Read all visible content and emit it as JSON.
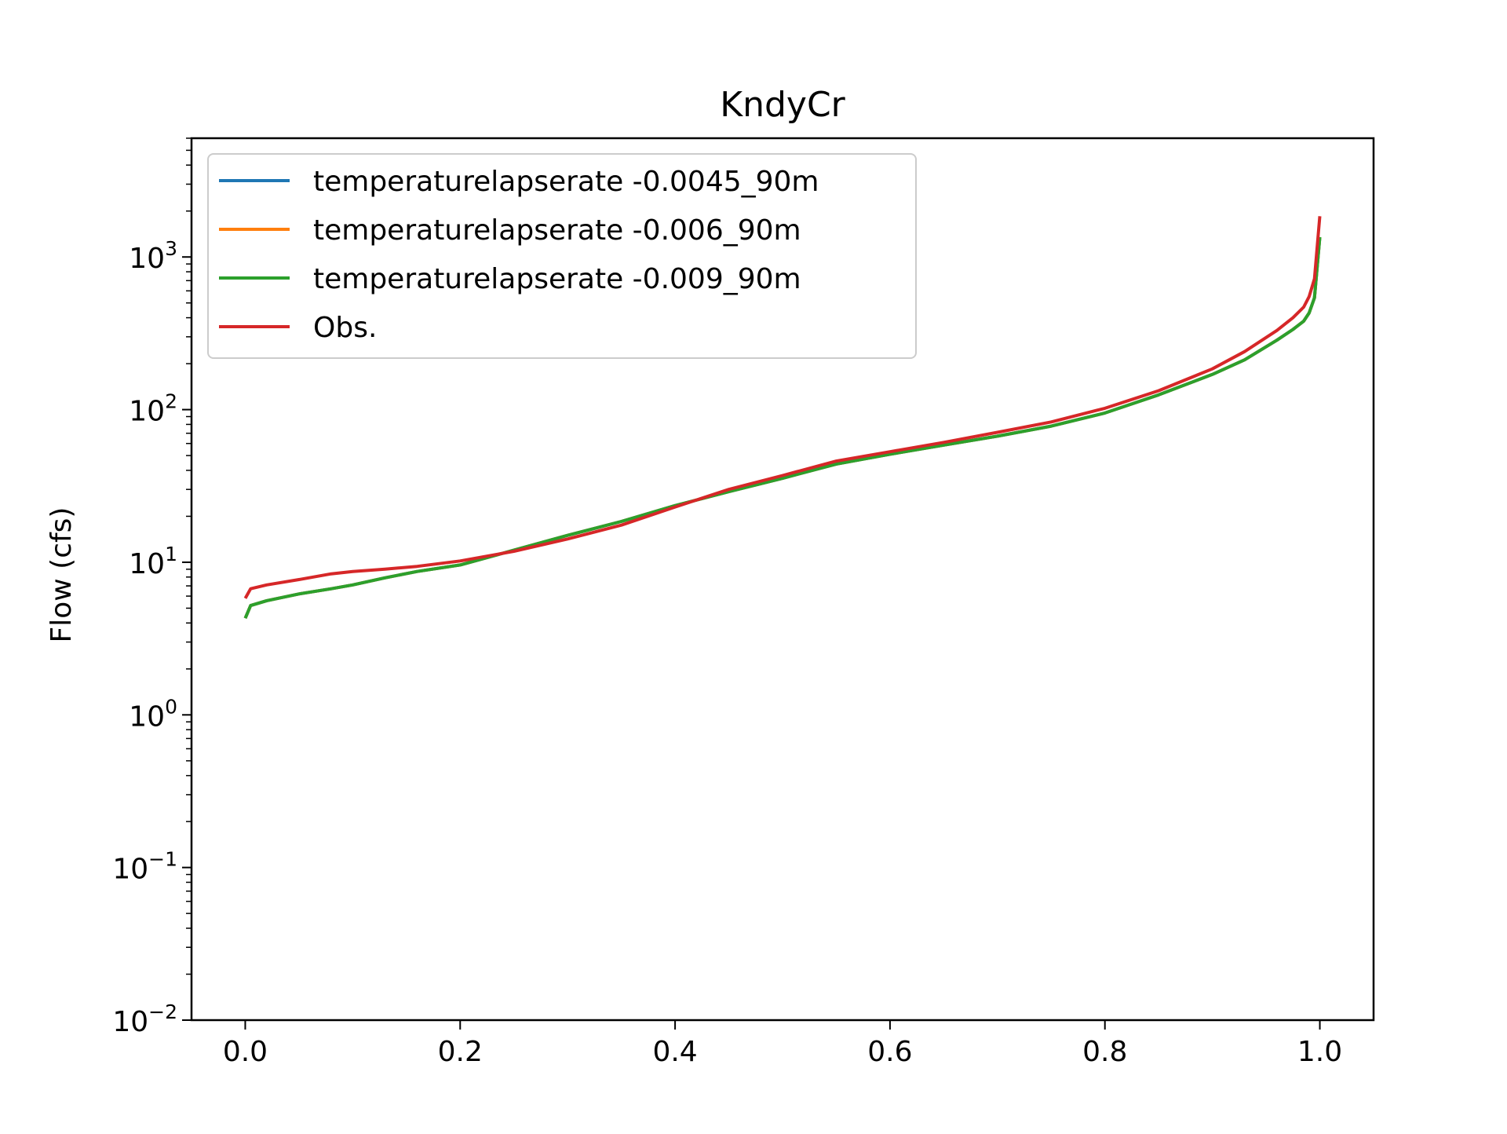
{
  "chart_data": {
    "type": "line",
    "title": "KndyCr",
    "xlabel": "",
    "ylabel": "Flow (cfs)",
    "xlim": [
      -0.05,
      1.05
    ],
    "ylim": [
      0.01,
      6000
    ],
    "yscale": "log",
    "grid": false,
    "legend_position": "top-left",
    "x_ticks": [
      {
        "value": 0.0,
        "label": "0.0"
      },
      {
        "value": 0.2,
        "label": "0.2"
      },
      {
        "value": 0.4,
        "label": "0.4"
      },
      {
        "value": 0.6,
        "label": "0.6"
      },
      {
        "value": 0.8,
        "label": "0.8"
      },
      {
        "value": 1.0,
        "label": "1.0"
      }
    ],
    "y_ticks": [
      {
        "value": 0.01,
        "base": "10",
        "exp": "−2"
      },
      {
        "value": 0.1,
        "base": "10",
        "exp": "−1"
      },
      {
        "value": 1,
        "base": "10",
        "exp": "0"
      },
      {
        "value": 10,
        "base": "10",
        "exp": "1"
      },
      {
        "value": 100,
        "base": "10",
        "exp": "2"
      },
      {
        "value": 1000,
        "base": "10",
        "exp": "3"
      }
    ],
    "x": [
      0,
      0.005,
      0.02,
      0.05,
      0.08,
      0.1,
      0.13,
      0.16,
      0.2,
      0.25,
      0.3,
      0.35,
      0.4,
      0.45,
      0.5,
      0.55,
      0.6,
      0.65,
      0.7,
      0.75,
      0.8,
      0.85,
      0.9,
      0.93,
      0.96,
      0.975,
      0.985,
      0.99,
      0.995,
      1.0
    ],
    "series": [
      {
        "name": "temperaturelapserate -0.0045_90m",
        "color": "#1f77b4",
        "values": [
          4.3,
          5.2,
          5.6,
          6.2,
          6.7,
          7.1,
          7.9,
          8.7,
          9.6,
          12.0,
          15.0,
          18.5,
          23.5,
          29.0,
          35.5,
          44.0,
          51.0,
          58.5,
          67.0,
          78.0,
          95.0,
          125.0,
          170.0,
          212.0,
          285.0,
          335.0,
          380.0,
          430.0,
          540.0,
          1350.0
        ]
      },
      {
        "name": "temperaturelapserate -0.006_90m",
        "color": "#ff7f0e",
        "values": [
          4.3,
          5.2,
          5.6,
          6.2,
          6.7,
          7.1,
          7.9,
          8.7,
          9.6,
          12.0,
          15.0,
          18.5,
          23.5,
          29.0,
          35.5,
          44.0,
          51.0,
          58.5,
          67.0,
          78.0,
          95.0,
          125.0,
          170.0,
          212.0,
          285.0,
          335.0,
          380.0,
          430.0,
          540.0,
          1350.0
        ]
      },
      {
        "name": "temperaturelapserate -0.009_90m",
        "color": "#2ca02c",
        "values": [
          4.3,
          5.2,
          5.6,
          6.2,
          6.7,
          7.1,
          7.9,
          8.7,
          9.6,
          12.0,
          15.0,
          18.5,
          23.5,
          29.0,
          35.5,
          44.0,
          51.0,
          58.5,
          67.0,
          78.0,
          95.0,
          125.0,
          170.0,
          212.0,
          285.0,
          335.0,
          380.0,
          430.0,
          540.0,
          1350.0
        ]
      },
      {
        "name": "Obs.",
        "color": "#d62728",
        "values": [
          5.8,
          6.7,
          7.1,
          7.7,
          8.4,
          8.7,
          9.0,
          9.4,
          10.2,
          11.8,
          14.2,
          17.5,
          23.0,
          30.0,
          37.0,
          46.0,
          53.0,
          61.0,
          71.0,
          83.0,
          102.0,
          133.0,
          185.0,
          240.0,
          330.0,
          400.0,
          470.0,
          550.0,
          720.0,
          1850.0
        ]
      }
    ]
  }
}
